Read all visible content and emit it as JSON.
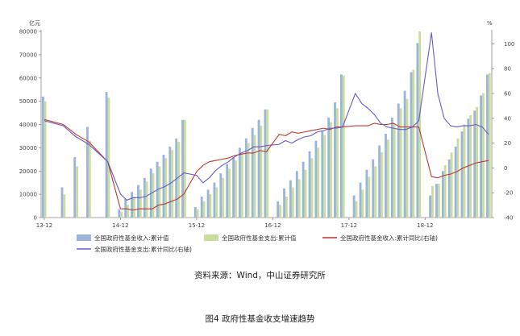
{
  "chart_data": {
    "type": "bar",
    "left_unit": "亿元",
    "right_unit": "%",
    "left_ylim": [
      0,
      80000
    ],
    "left_ticks": [
      "0",
      "10000",
      "20000",
      "30000",
      "40000",
      "50000",
      "60000",
      "70000",
      "80000"
    ],
    "right_ylim": [
      -40,
      110
    ],
    "right_ticks": [
      "-40",
      "-20",
      "0",
      "20",
      "40",
      "60",
      "80",
      "100"
    ],
    "x_tick_labels": [
      "13-12",
      "14-12",
      "15-12",
      "16-12",
      "17-12",
      "18-12"
    ],
    "grid": false,
    "legend_position": "bottom",
    "series": [
      {
        "name": "全国政府性基金收入:累计值",
        "kind": "bar",
        "axis": "left",
        "color": "#9bb5d8",
        "values": [
          52000,
          0,
          0,
          13000,
          0,
          26000,
          0,
          39000,
          0,
          0,
          54000,
          0,
          3500,
          8000,
          11000,
          14000,
          17000,
          21000,
          24000,
          27000,
          30500,
          34000,
          42000,
          0,
          4500,
          9000,
          12000,
          15000,
          19000,
          23000,
          26000,
          30000,
          34000,
          38500,
          42000,
          46500,
          0,
          7000,
          12500,
          16000,
          20000,
          24000,
          28500,
          33000,
          37000,
          43000,
          49500,
          61500,
          0,
          9500,
          15000,
          20500,
          25000,
          31000,
          36000,
          43000,
          49000,
          54500,
          62500,
          75000,
          0,
          9500,
          14500,
          20000,
          25000,
          30500,
          37000,
          42500,
          46000,
          52500,
          61500
        ]
      },
      {
        "name": "全国政府性基金支出:累计值",
        "kind": "bar",
        "axis": "left",
        "color": "#c9de9d",
        "values": [
          50000,
          0,
          0,
          10000,
          0,
          22000,
          0,
          33000,
          0,
          0,
          51500,
          0,
          2500,
          5500,
          9000,
          12000,
          15500,
          19000,
          22000,
          25500,
          29000,
          32500,
          42000,
          0,
          3500,
          7000,
          10000,
          13000,
          17000,
          21000,
          24500,
          28000,
          32000,
          35500,
          39500,
          46500,
          0,
          5500,
          9000,
          13000,
          16500,
          20500,
          25500,
          30000,
          35500,
          41000,
          47000,
          61000,
          0,
          7000,
          12000,
          17500,
          22000,
          28000,
          33500,
          40500,
          47000,
          51000,
          63500,
          80000,
          0,
          13500,
          14500,
          22500,
          28000,
          34000,
          40000,
          44000,
          47500,
          53500,
          62000
        ]
      },
      {
        "name": "全国政府性基金收入:累计同比(右轴)",
        "kind": "line",
        "axis": "right",
        "color": "#c0392b",
        "values": [
          39,
          null,
          null,
          35,
          null,
          27,
          null,
          21,
          null,
          null,
          5,
          null,
          -33,
          -33,
          -34,
          -33,
          -33,
          -33,
          -30,
          -29,
          -27,
          -25,
          -21,
          null,
          -3,
          2,
          5,
          6,
          7,
          8,
          10,
          11,
          12,
          12,
          14,
          13,
          null,
          27,
          26,
          29,
          28,
          29,
          30,
          31,
          32,
          31,
          33,
          33,
          null,
          34,
          34,
          34,
          36,
          35,
          35,
          36,
          33,
          33,
          33,
          33,
          null,
          -7,
          -8,
          -6,
          -5,
          -3,
          0,
          2,
          4,
          5,
          6
        ]
      },
      {
        "name": "全国政府性基金支出:累计同比(右轴)",
        "kind": "line",
        "axis": "right",
        "color": "#6a5acd",
        "values": [
          38,
          null,
          null,
          34,
          null,
          25,
          null,
          19,
          null,
          null,
          5,
          null,
          -21,
          -26,
          -24,
          -24,
          -23,
          -20,
          -17,
          -15,
          -12,
          -8,
          -4,
          null,
          -6,
          -12,
          -8,
          -2,
          2,
          5,
          9,
          12,
          14,
          17,
          17,
          18,
          null,
          19,
          22,
          20,
          23,
          25,
          26,
          29,
          30,
          32,
          32,
          33,
          null,
          60,
          52,
          48,
          43,
          36,
          33,
          32,
          31,
          31,
          33,
          38,
          null,
          109,
          60,
          40,
          34,
          33,
          34,
          34,
          35,
          33,
          27
        ]
      }
    ]
  },
  "source_text": "资料来源：Wind，中山证券研究所",
  "caption_text": "图4 政府性基金收支增速趋势"
}
